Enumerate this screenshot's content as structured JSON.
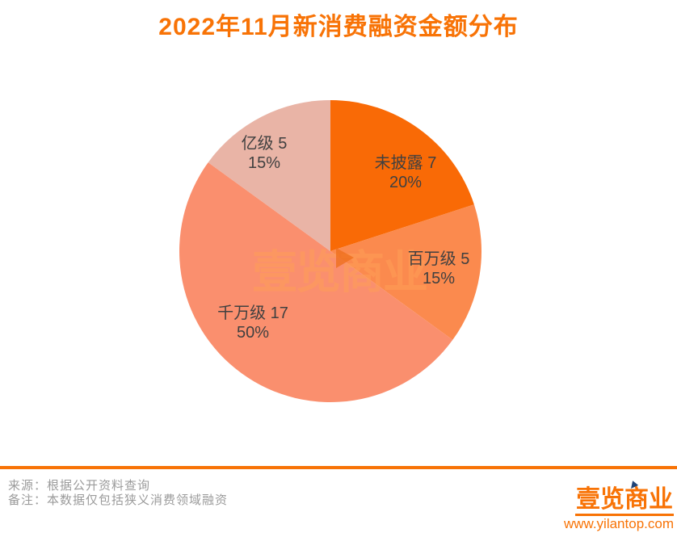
{
  "title": "2022年11月新消费融资金额分布",
  "chart_data": {
    "type": "pie",
    "title": "2022年11月新消费融资金额分布",
    "start_angle_deg": 0,
    "direction": "clockwise",
    "legend": "none",
    "slices": [
      {
        "label": "未披露",
        "count": 7,
        "pct": 20,
        "color": "#f96a06",
        "display": "未披露 7",
        "pct_label": "20%"
      },
      {
        "label": "百万级",
        "count": 5,
        "pct": 15,
        "color": "#fb8a4e",
        "display": "百万级 5",
        "pct_label": "15%"
      },
      {
        "label": "千万级",
        "count": 17,
        "pct": 50,
        "color": "#fa8f6e",
        "display": "千万级 17",
        "pct_label": "50%"
      },
      {
        "label": "亿级",
        "count": 5,
        "pct": 15,
        "color": "#e9b4a6",
        "display": "亿级 5",
        "pct_label": "15%"
      }
    ]
  },
  "watermark": {
    "text": "壹览商业"
  },
  "footer": {
    "source": "来源：根据公开资料查询",
    "note": "备注：本数据仅包括狭义消费领域融资"
  },
  "brand": {
    "logo_text": "壹览商业",
    "url": "www.yilantop.com"
  },
  "colors": {
    "accent": "#f87306",
    "label_text": "#404040",
    "muted_text": "#9b9b9b",
    "watermark": "#ff9e57",
    "cursor_blue": "#1f4377",
    "background": "#ffffff"
  }
}
